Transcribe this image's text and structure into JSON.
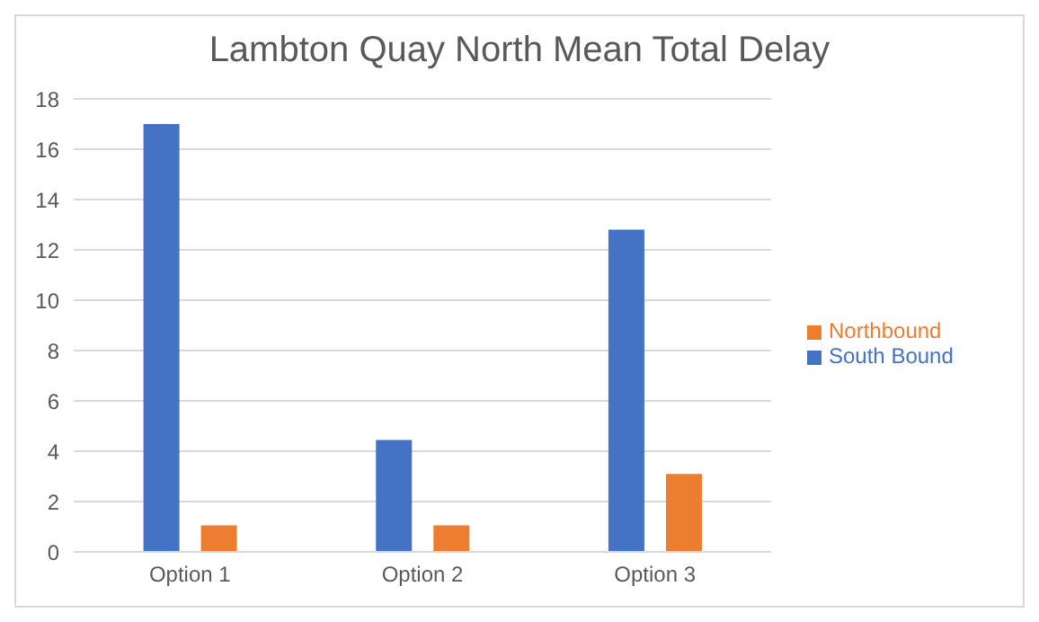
{
  "chart_data": {
    "type": "bar",
    "title": "Lambton Quay North Mean Total Delay",
    "categories": [
      "Option 1",
      "Option 2",
      "Option 3"
    ],
    "series": [
      {
        "name": "South Bound",
        "color": "#4472c4",
        "values": [
          17,
          4.45,
          12.8
        ]
      },
      {
        "name": "Northbound",
        "color": "#ed7d31",
        "values": [
          1.05,
          1.05,
          3.1
        ]
      }
    ],
    "ylim": [
      0,
      18
    ],
    "yticks": [
      0,
      2,
      4,
      6,
      8,
      10,
      12,
      14,
      16,
      18
    ],
    "grid": "y",
    "legend": "right"
  }
}
